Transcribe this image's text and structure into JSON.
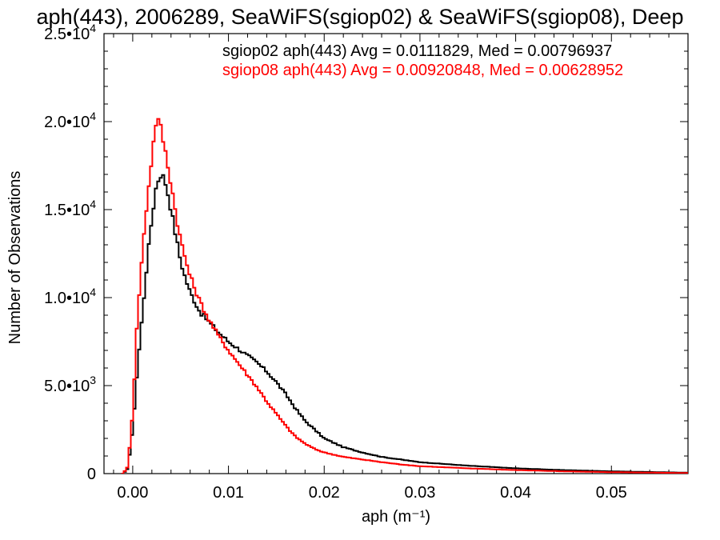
{
  "chart_data": {
    "type": "line",
    "title": "aph(443), 2006289, SeaWiFS(sgiop02) & SeaWiFS(sgiop08), Deep",
    "xlabel": "aph (m⁻¹)",
    "ylabel": "Number of Observations",
    "xlim": [
      -0.003,
      0.058
    ],
    "ylim": [
      0,
      25000
    ],
    "x_ticks": [
      {
        "value": 0.0,
        "label": "0.00"
      },
      {
        "value": 0.01,
        "label": "0.01"
      },
      {
        "value": 0.02,
        "label": "0.02"
      },
      {
        "value": 0.03,
        "label": "0.03"
      },
      {
        "value": 0.04,
        "label": "0.04"
      },
      {
        "value": 0.05,
        "label": "0.05"
      }
    ],
    "y_ticks": [
      {
        "value": 0,
        "mantissa": "0",
        "exponent": ""
      },
      {
        "value": 5000,
        "mantissa": "5.0•10",
        "exponent": "3"
      },
      {
        "value": 10000,
        "mantissa": "1.0•10",
        "exponent": "4"
      },
      {
        "value": 15000,
        "mantissa": "1.5•10",
        "exponent": "4"
      },
      {
        "value": 20000,
        "mantissa": "2.0•10",
        "exponent": "4"
      },
      {
        "value": 25000,
        "mantissa": "2.5•10",
        "exponent": "4"
      }
    ],
    "grid": false,
    "legend_position": "top-right",
    "series": [
      {
        "name": "sgiop02 aph(443) Avg = 0.0111829, Med = 0.00796937",
        "color": "#000000",
        "x": [
          -0.001,
          -0.0005,
          0.0,
          0.0005,
          0.001,
          0.0015,
          0.002,
          0.0025,
          0.003,
          0.0035,
          0.004,
          0.0045,
          0.005,
          0.0055,
          0.006,
          0.007,
          0.008,
          0.009,
          0.01,
          0.011,
          0.012,
          0.013,
          0.014,
          0.015,
          0.016,
          0.017,
          0.018,
          0.019,
          0.02,
          0.022,
          0.024,
          0.026,
          0.028,
          0.03,
          0.035,
          0.04,
          0.045,
          0.05,
          0.055,
          0.058
        ],
        "y": [
          0,
          300,
          2500,
          6000,
          9000,
          12000,
          14500,
          16500,
          17100,
          16400,
          15000,
          13500,
          12100,
          11100,
          10300,
          9200,
          8600,
          8000,
          7500,
          7100,
          6700,
          6300,
          5800,
          5200,
          4500,
          3700,
          3000,
          2500,
          2000,
          1500,
          1200,
          950,
          800,
          650,
          450,
          300,
          200,
          130,
          80,
          50
        ]
      },
      {
        "name": "sgiop08 aph(443) Avg = 0.00920848, Med = 0.00628952",
        "color": "#ff0000",
        "x": [
          -0.001,
          -0.0005,
          0.0,
          0.0005,
          0.001,
          0.0015,
          0.002,
          0.0025,
          0.003,
          0.0035,
          0.004,
          0.0045,
          0.005,
          0.0055,
          0.006,
          0.007,
          0.008,
          0.009,
          0.01,
          0.011,
          0.012,
          0.013,
          0.014,
          0.015,
          0.016,
          0.017,
          0.018,
          0.019,
          0.02,
          0.022,
          0.024,
          0.026,
          0.028,
          0.03,
          0.035,
          0.04,
          0.045,
          0.05,
          0.055,
          0.058
        ],
        "y": [
          0,
          400,
          3500,
          9000,
          12500,
          15500,
          18000,
          20300,
          19500,
          18000,
          16500,
          14800,
          13300,
          12200,
          11200,
          9800,
          8700,
          7800,
          7000,
          6300,
          5600,
          4900,
          4100,
          3400,
          2700,
          2100,
          1700,
          1400,
          1200,
          950,
          800,
          650,
          520,
          420,
          300,
          200,
          130,
          80,
          50,
          30
        ]
      }
    ]
  }
}
